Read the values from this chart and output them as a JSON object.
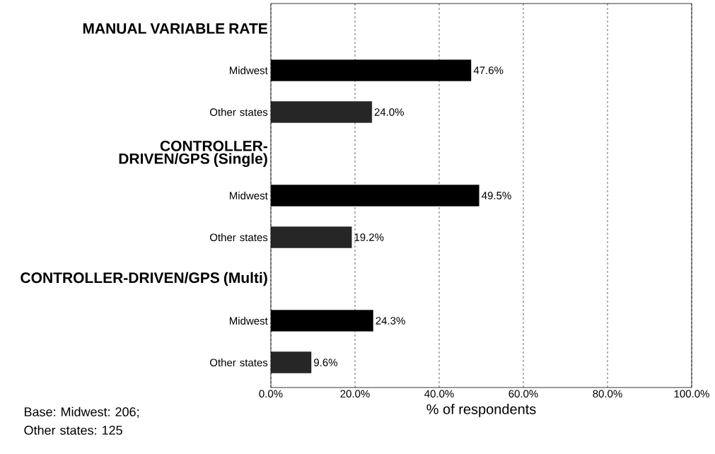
{
  "chart_data": {
    "type": "bar",
    "orientation": "horizontal",
    "categories": [
      "MANUAL VARIABLE RATE",
      "Midwest",
      "Other states",
      "CONTROLLER-DRIVEN/GPS (Single)",
      "Midwest",
      "Other states",
      "CONTROLLER-DRIVEN/GPS (Multi)",
      "Midwest",
      "Other states"
    ],
    "values": [
      null,
      47.6,
      24.0,
      null,
      49.5,
      19.2,
      null,
      24.3,
      9.6
    ],
    "colors": [
      null,
      "#000000",
      "#262626",
      null,
      "#000000",
      "#262626",
      null,
      "#000000",
      "#262626"
    ],
    "value_labels": [
      null,
      "47.6%",
      "24.0%",
      null,
      "49.5%",
      "19.2%",
      null,
      "24.3%",
      "9.6%"
    ],
    "xlim": [
      0,
      100
    ],
    "xticks": [
      {
        "value": 0,
        "label": "0.0%"
      },
      {
        "value": 20,
        "label": "20.0%"
      },
      {
        "value": 40,
        "label": "40.0%"
      },
      {
        "value": 60,
        "label": "60.0%"
      },
      {
        "value": 80,
        "label": "80.0%"
      },
      {
        "value": 100,
        "label": "100.0%"
      }
    ],
    "xlabel": "% of respondents",
    "grid": "x",
    "annotations": [
      "Base:  Midwest: 206; Other states: 125"
    ]
  }
}
